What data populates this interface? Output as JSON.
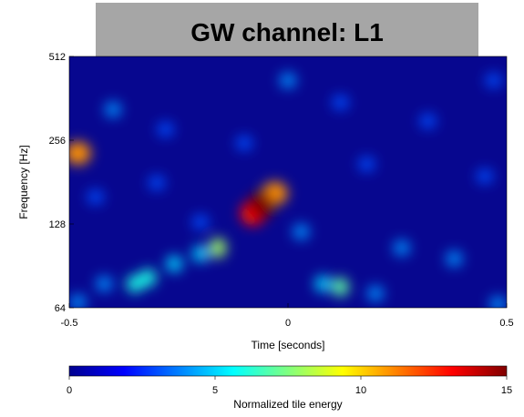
{
  "chart_data": {
    "type": "heatmap",
    "title": "GW channel: L1",
    "xlabel": "Time [seconds]",
    "ylabel": "Frequency [Hz]",
    "xlim": [
      -0.5,
      0.5
    ],
    "ylim": [
      64,
      512
    ],
    "yscale": "log2",
    "x_ticks": [
      {
        "value": -0.5,
        "label": "-0.5"
      },
      {
        "value": 0,
        "label": "0"
      },
      {
        "value": 0.5,
        "label": "0.5"
      }
    ],
    "y_ticks": [
      {
        "value": 64,
        "label": "64"
      },
      {
        "value": 128,
        "label": "128"
      },
      {
        "value": 256,
        "label": "256"
      },
      {
        "value": 512,
        "label": "512"
      }
    ],
    "colorbar": {
      "label": "Normalized tile energy",
      "range": [
        0,
        15
      ],
      "colormap": "jet",
      "ticks": [
        {
          "value": 0,
          "label": "0"
        },
        {
          "value": 5,
          "label": "5"
        },
        {
          "value": 10,
          "label": "10"
        },
        {
          "value": 15,
          "label": "15"
        }
      ]
    },
    "features": [
      {
        "t": -0.06,
        "f": 150,
        "energy": 15
      },
      {
        "t": -0.08,
        "f": 140,
        "energy": 13
      },
      {
        "t": -0.03,
        "f": 165,
        "energy": 11
      },
      {
        "t": -0.48,
        "f": 230,
        "energy": 11
      },
      {
        "t": -0.32,
        "f": 82,
        "energy": 6
      },
      {
        "t": -0.35,
        "f": 78,
        "energy": 6
      },
      {
        "t": -0.16,
        "f": 105,
        "energy": 8
      },
      {
        "t": 0.12,
        "f": 76,
        "energy": 7
      },
      {
        "t": -0.42,
        "f": 78,
        "energy": 4
      },
      {
        "t": -0.26,
        "f": 92,
        "energy": 5
      },
      {
        "t": -0.2,
        "f": 100,
        "energy": 5
      },
      {
        "t": 0.03,
        "f": 120,
        "energy": 4
      },
      {
        "t": 0.08,
        "f": 78,
        "energy": 5
      },
      {
        "t": 0.2,
        "f": 72,
        "energy": 4
      },
      {
        "t": 0.38,
        "f": 96,
        "energy": 4
      },
      {
        "t": 0.26,
        "f": 105,
        "energy": 4
      },
      {
        "t": -0.4,
        "f": 330,
        "energy": 4
      },
      {
        "t": -0.3,
        "f": 180,
        "energy": 3
      },
      {
        "t": -0.44,
        "f": 160,
        "energy": 3
      },
      {
        "t": -0.2,
        "f": 130,
        "energy": 3
      },
      {
        "t": 0.0,
        "f": 420,
        "energy": 4
      },
      {
        "t": 0.12,
        "f": 350,
        "energy": 3
      },
      {
        "t": -0.28,
        "f": 280,
        "energy": 3
      },
      {
        "t": 0.32,
        "f": 300,
        "energy": 3
      },
      {
        "t": 0.47,
        "f": 420,
        "energy": 3
      },
      {
        "t": 0.45,
        "f": 190,
        "energy": 3
      },
      {
        "t": -0.48,
        "f": 67,
        "energy": 4
      },
      {
        "t": 0.48,
        "f": 66,
        "energy": 4
      },
      {
        "t": -0.1,
        "f": 250,
        "energy": 3
      },
      {
        "t": 0.18,
        "f": 210,
        "energy": 3
      }
    ]
  }
}
